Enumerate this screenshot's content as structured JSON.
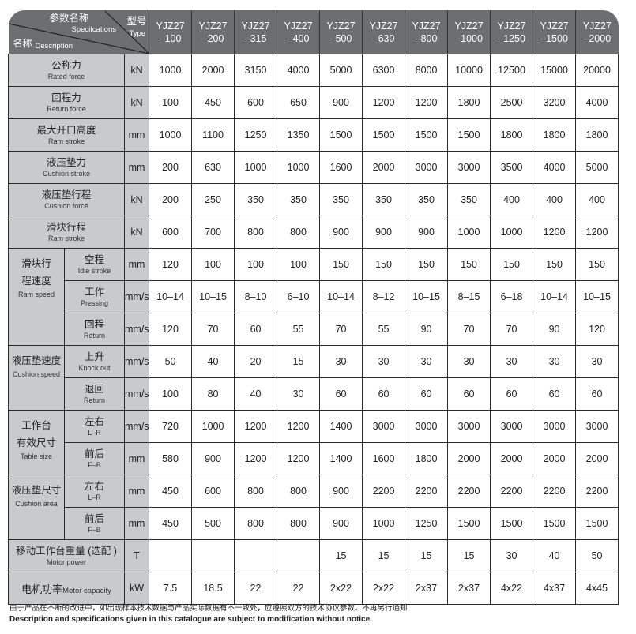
{
  "header": {
    "spec_cn": "参数名称",
    "spec_en": "Specifcations",
    "type_cn": "型号",
    "type_en": "Type",
    "desc_cn": "名称",
    "desc_en": "Description",
    "models": [
      [
        "YJZ27",
        "–100"
      ],
      [
        "YJZ27",
        "–200"
      ],
      [
        "YJZ27",
        "–315"
      ],
      [
        "YJZ27",
        "–400"
      ],
      [
        "YJZ27",
        "–500"
      ],
      [
        "YJZ27",
        "–630"
      ],
      [
        "YJZ27",
        "–800"
      ],
      [
        "YJZ27",
        "–1000"
      ],
      [
        "YJZ27",
        "–1250"
      ],
      [
        "YJZ27",
        "–1500"
      ],
      [
        "YJZ27",
        "–2000"
      ]
    ]
  },
  "groups": [
    {
      "cn": [
        "滑块行",
        "程速度"
      ],
      "en": "Ram speed"
    },
    {
      "cn": [
        "液压垫速度"
      ],
      "en": "Cushion speed"
    },
    {
      "cn": [
        "工作台",
        "有效尺寸"
      ],
      "en": "Table size"
    },
    {
      "cn": [
        "液压垫尺寸"
      ],
      "en": "Cushion area"
    }
  ],
  "rows": [
    {
      "cn": "公称力",
      "en": "Rated force",
      "unit": "kN",
      "values": [
        "1000",
        "2000",
        "3150",
        "4000",
        "5000",
        "6300",
        "8000",
        "10000",
        "12500",
        "15000",
        "20000"
      ]
    },
    {
      "cn": "回程力",
      "en": "Return force",
      "unit": "kN",
      "values": [
        "100",
        "450",
        "600",
        "650",
        "900",
        "1200",
        "1200",
        "1800",
        "2500",
        "3200",
        "4000"
      ]
    },
    {
      "cn": "最大开口高度",
      "en": "Ram stroke",
      "unit": "mm",
      "values": [
        "1000",
        "1100",
        "1250",
        "1350",
        "1500",
        "1500",
        "1500",
        "1500",
        "1800",
        "1800",
        "1800"
      ]
    },
    {
      "cn": "液压垫力",
      "en": "Cushion stroke",
      "unit": "mm",
      "values": [
        "200",
        "630",
        "1000",
        "1000",
        "1600",
        "2000",
        "3000",
        "3000",
        "3500",
        "4000",
        "5000"
      ]
    },
    {
      "cn": "液压垫行程",
      "en": "Cushion force",
      "unit": "kN",
      "values": [
        "200",
        "250",
        "350",
        "350",
        "350",
        "350",
        "350",
        "350",
        "400",
        "400",
        "400"
      ]
    },
    {
      "cn": "滑块行程",
      "en": "Ram stroke",
      "unit": "kN",
      "values": [
        "600",
        "700",
        "800",
        "800",
        "900",
        "900",
        "900",
        "1000",
        "1000",
        "1200",
        "1200"
      ]
    },
    {
      "group": 0,
      "span": 3,
      "cn": "空程",
      "en": "Idie stroke",
      "unit": "mm",
      "values": [
        "120",
        "100",
        "100",
        "100",
        "150",
        "150",
        "150",
        "150",
        "150",
        "150",
        "150"
      ]
    },
    {
      "group": 0,
      "cn": "工作",
      "en": "Pressing",
      "unit": "mm/s",
      "values": [
        "10–14",
        "10–15",
        "8–10",
        "6–10",
        "10–14",
        "8–12",
        "10–15",
        "8–15",
        "6–18",
        "10–14",
        "10–15"
      ]
    },
    {
      "group": 0,
      "cn": "回程",
      "en": "Return",
      "unit": "mm/s",
      "values": [
        "120",
        "70",
        "60",
        "55",
        "70",
        "55",
        "90",
        "70",
        "70",
        "90",
        "120"
      ]
    },
    {
      "group": 1,
      "span": 2,
      "cn": "上升",
      "en": "Knock out",
      "unit": "mm/s",
      "values": [
        "50",
        "40",
        "20",
        "15",
        "30",
        "30",
        "30",
        "30",
        "30",
        "30",
        "30"
      ]
    },
    {
      "group": 1,
      "cn": "退回",
      "en": "Return",
      "unit": "mm/s",
      "values": [
        "100",
        "80",
        "40",
        "30",
        "60",
        "60",
        "60",
        "60",
        "60",
        "60",
        "60"
      ]
    },
    {
      "group": 2,
      "span": 2,
      "cn": "左右",
      "en": "L–R",
      "unit": "mm/s",
      "values": [
        "720",
        "1000",
        "1200",
        "1200",
        "1400",
        "3000",
        "3000",
        "3000",
        "3000",
        "3000",
        "3000"
      ]
    },
    {
      "group": 2,
      "cn": "前后",
      "en": "F–B",
      "unit": "mm",
      "values": [
        "580",
        "900",
        "1200",
        "1200",
        "1400",
        "1600",
        "1800",
        "2000",
        "2000",
        "2000",
        "2000"
      ]
    },
    {
      "group": 3,
      "span": 2,
      "cn": "左右",
      "en": "L–R",
      "unit": "mm",
      "values": [
        "450",
        "600",
        "800",
        "800",
        "900",
        "2200",
        "2200",
        "2200",
        "2200",
        "2200",
        "2200"
      ]
    },
    {
      "group": 3,
      "cn": "前后",
      "en": "F–B",
      "unit": "mm",
      "values": [
        "450",
        "500",
        "800",
        "800",
        "900",
        "1000",
        "1250",
        "1500",
        "1500",
        "1500",
        "1500"
      ]
    },
    {
      "cn": "移动工作台重量 (选配 )",
      "en": "Motor power",
      "unit": "T",
      "values": [
        "",
        "",
        "",
        "",
        "15",
        "15",
        "15",
        "15",
        "30",
        "40",
        "50"
      ]
    },
    {
      "cn": "电机功率",
      "en": "Motor capacity",
      "inline": true,
      "unit": "kW",
      "values": [
        "7.5",
        "18.5",
        "22",
        "22",
        "2x22",
        "2x22",
        "2x37",
        "2x37",
        "4x22",
        "4x37",
        "4x45"
      ]
    }
  ],
  "footer": {
    "cn": "由于产品在不断的改进中，如出现样本技术数据与产品实际数据有不一致处，应遵照双方的技术协议参数。不再另行通知",
    "en": "Description and specifications given in this catalogue are subject to modification without notice."
  },
  "colors": {
    "header_bg": "#6d6e70",
    "label_bg": "#c9cacc",
    "border": "#2a2a2a"
  }
}
